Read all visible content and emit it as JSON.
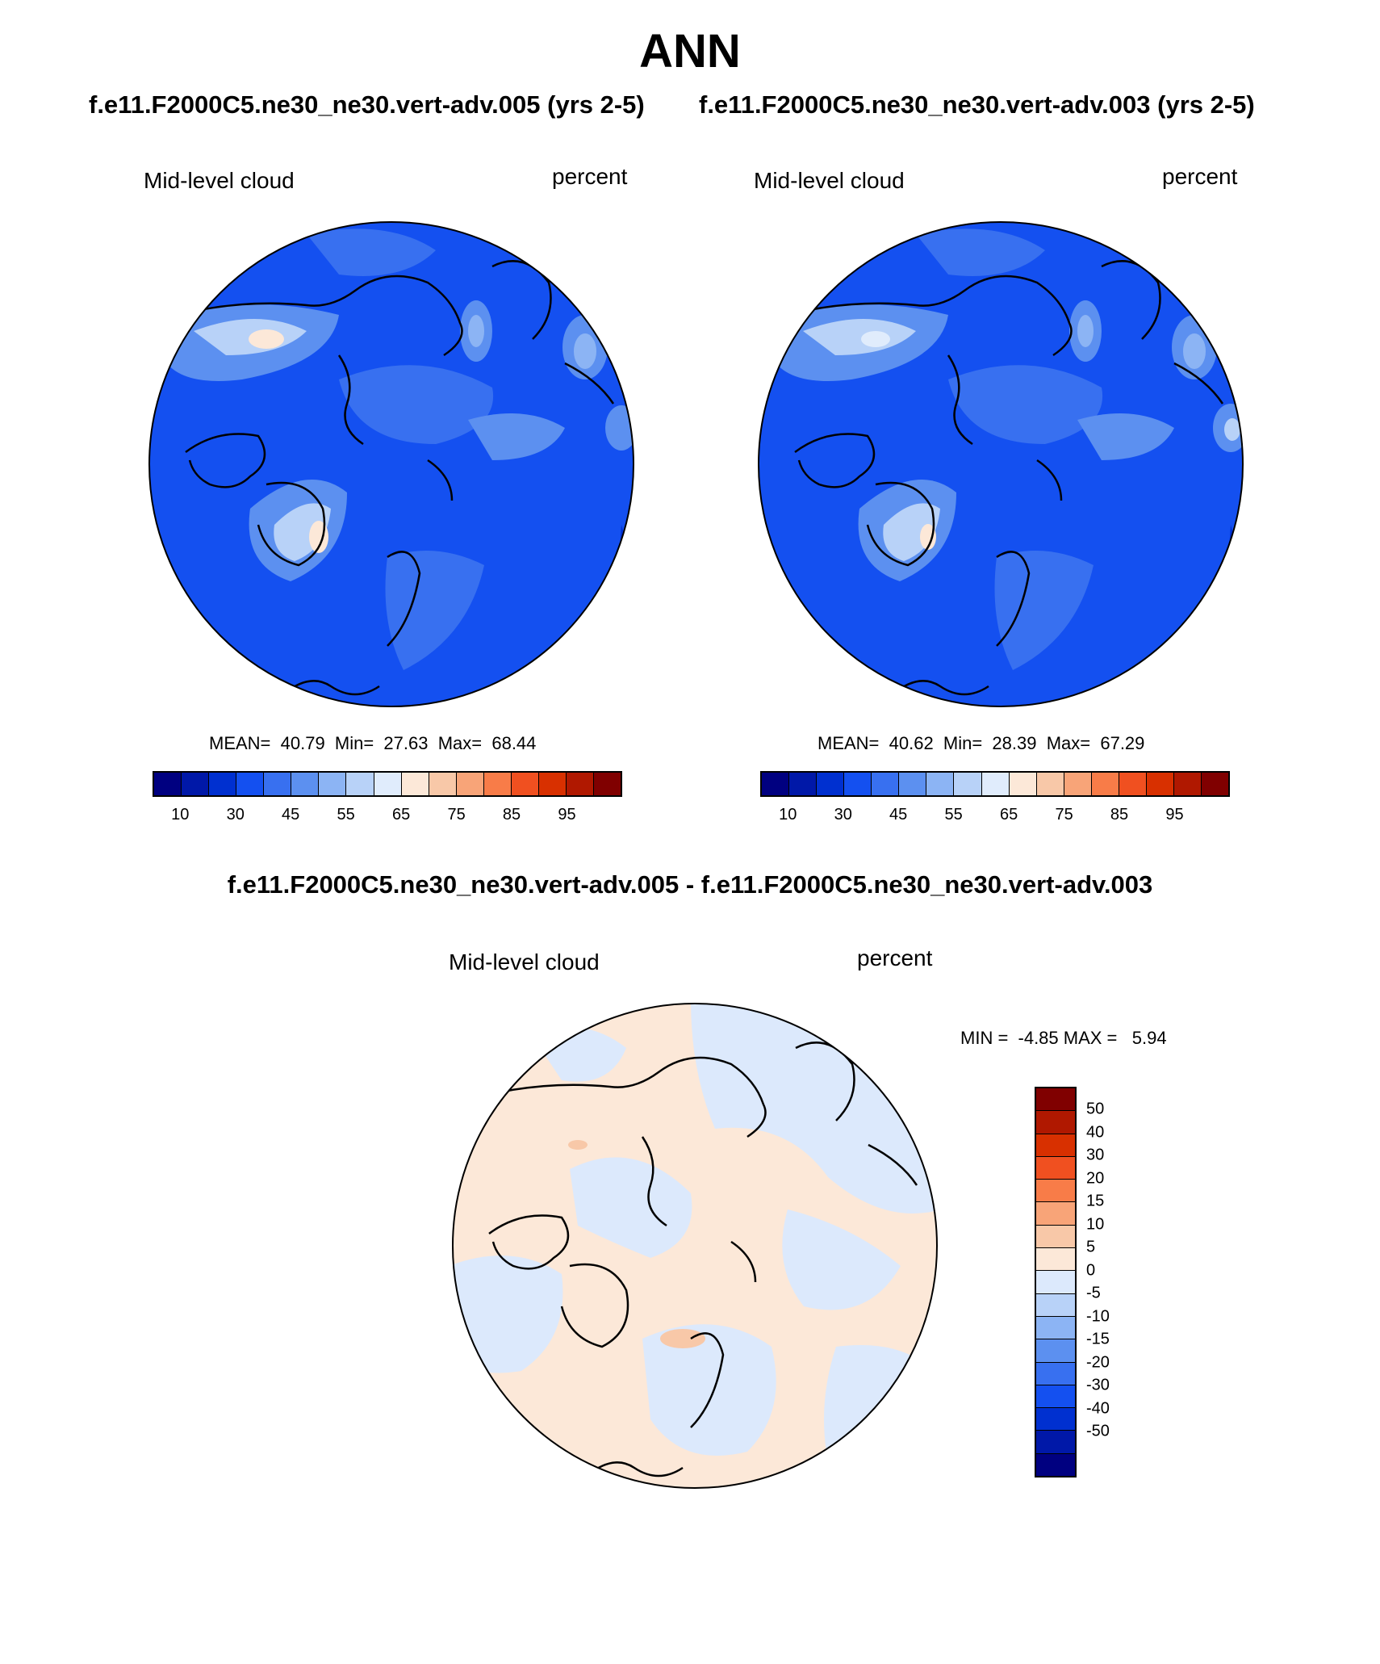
{
  "title": "ANN",
  "case_titles": {
    "left": "f.e11.F2000C5.ne30_ne30.vert-adv.005 (yrs 2-5)",
    "right": "f.e11.F2000C5.ne30_ne30.vert-adv.003 (yrs 2-5)"
  },
  "panels": [
    {
      "variable": "Mid-level cloud",
      "units": "percent",
      "stats": "MEAN=  40.79  Min=  27.63  Max=  68.44"
    },
    {
      "variable": "Mid-level cloud",
      "units": "percent",
      "stats": "MEAN=  40.62  Min=  28.39  Max=  67.29"
    }
  ],
  "diff_title": "f.e11.F2000C5.ne30_ne30.vert-adv.005 - f.e11.F2000C5.ne30_ne30.vert-adv.003",
  "diff_panel": {
    "variable": "Mid-level cloud",
    "units": "percent",
    "stats": "MIN =  -4.85 MAX =   5.94"
  },
  "colorbar_abs": {
    "labels": [
      "10",
      "30",
      "45",
      "55",
      "65",
      "75",
      "85",
      "95"
    ],
    "colors": [
      "#000080",
      "#0018a8",
      "#0030d0",
      "#1450f0",
      "#3870f0",
      "#5c90f0",
      "#8cb4f4",
      "#b8d2f8",
      "#e0ecfc",
      "#fce8d8",
      "#f8c8a8",
      "#f8a478",
      "#f87c48",
      "#f05020",
      "#d83000",
      "#b01800",
      "#800000"
    ]
  },
  "colorbar_diff": {
    "labels": [
      "50",
      "40",
      "30",
      "20",
      "15",
      "10",
      "5",
      "0",
      "-5",
      "-10",
      "-15",
      "-20",
      "-30",
      "-40",
      "-50"
    ],
    "colors": [
      "#000080",
      "#0018a8",
      "#0030d0",
      "#1450f0",
      "#3870f0",
      "#5c90f0",
      "#8cb4f4",
      "#b8d2f8",
      "#dce9fc",
      "#fce8d8",
      "#f8c8a8",
      "#f8a478",
      "#f87c48",
      "#f05020",
      "#d83000",
      "#b01800",
      "#800000"
    ]
  }
}
